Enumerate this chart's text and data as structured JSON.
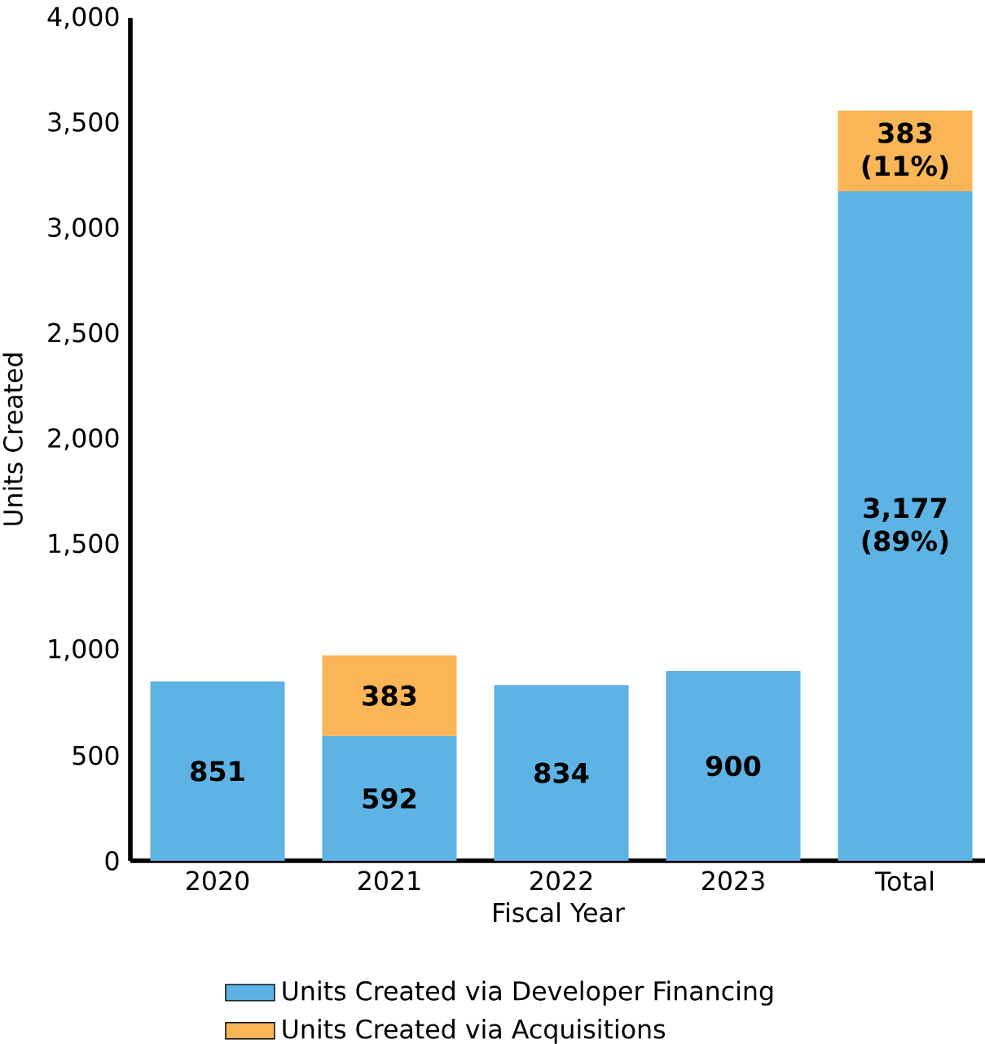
{
  "chart_data": {
    "type": "bar",
    "stacked": true,
    "xlabel": "Fiscal Year",
    "ylabel": "Units Created",
    "categories": [
      "2020",
      "2021",
      "2022",
      "2023",
      "Total"
    ],
    "series": [
      {
        "name": "Units Created via Developer Financing",
        "color": "#5db3e3",
        "values": [
          851,
          592,
          834,
          900,
          3177
        ],
        "value_labels": [
          "851",
          "592",
          "834",
          "900",
          "3,177 (89%)"
        ]
      },
      {
        "name": "Units Created via Acquisitions",
        "color": "#f9b556",
        "values": [
          null,
          383,
          null,
          null,
          383
        ],
        "value_labels": [
          null,
          "383",
          null,
          null,
          "383 (11%)"
        ]
      }
    ],
    "ylim": [
      0,
      4000
    ],
    "yticks": [
      0,
      500,
      {
        "value": 1000,
        "label": "1,000"
      },
      {
        "value": 1500,
        "label": "1,500"
      },
      {
        "value": 2000,
        "label": "2,000"
      },
      {
        "value": 2500,
        "label": "2,500"
      },
      {
        "value": 3000,
        "label": "3,000"
      },
      {
        "value": 3500,
        "label": "3,500"
      },
      {
        "value": 4000,
        "label": "4,000"
      }
    ],
    "grid": false,
    "legend": "bottom"
  }
}
